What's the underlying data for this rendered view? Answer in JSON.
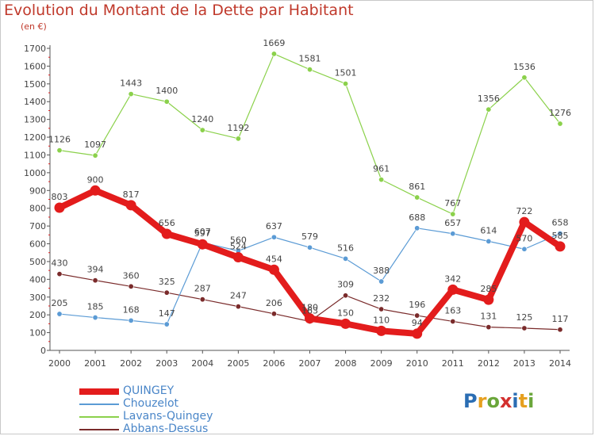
{
  "title": "Evolution du Montant de la Dette par Habitant",
  "unit": "(en €)",
  "logo": {
    "text": "Proxiti",
    "letters": [
      {
        "ch": "P",
        "color": "#2a6db3"
      },
      {
        "ch": "r",
        "color": "#e6a020"
      },
      {
        "ch": "o",
        "color": "#6aa63a"
      },
      {
        "ch": "x",
        "color": "#d3302f"
      },
      {
        "ch": "i",
        "color": "#2a6db3"
      },
      {
        "ch": "t",
        "color": "#e6a020"
      },
      {
        "ch": "i",
        "color": "#6aa63a"
      }
    ]
  },
  "chart_data": {
    "type": "line",
    "title": "Evolution du Montant de la Dette par Habitant",
    "unit": "(en €)",
    "x": [
      2000,
      2001,
      2002,
      2003,
      2004,
      2005,
      2006,
      2007,
      2008,
      2009,
      2010,
      2011,
      2012,
      2013,
      2014
    ],
    "ylim": [
      0,
      1700
    ],
    "yticks": [
      0,
      100,
      200,
      300,
      400,
      500,
      600,
      700,
      800,
      900,
      1000,
      1100,
      1200,
      1300,
      1400,
      1500,
      1600,
      1700
    ],
    "grid": false,
    "legend_position": "bottom-left",
    "series": [
      {
        "name": "QUINGEY",
        "color": "#e31c1c",
        "emphasis": true,
        "values": [
          803,
          900,
          817,
          656,
          597,
          524,
          454,
          180,
          150,
          110,
          94,
          342,
          285,
          722,
          585
        ]
      },
      {
        "name": "Chouzelot",
        "color": "#5b9bd5",
        "emphasis": false,
        "values": [
          205,
          185,
          168,
          147,
          607,
          560,
          637,
          579,
          516,
          388,
          688,
          657,
          614,
          570,
          658
        ]
      },
      {
        "name": "Lavans-Quingey",
        "color": "#8bd14b",
        "emphasis": false,
        "values": [
          1126,
          1097,
          1443,
          1400,
          1240,
          1192,
          1669,
          1581,
          1501,
          961,
          861,
          767,
          1356,
          1536,
          1276
        ]
      },
      {
        "name": "Abbans-Dessus",
        "color": "#7a2b2b",
        "emphasis": false,
        "values": [
          430,
          394,
          360,
          325,
          287,
          247,
          206,
          163,
          309,
          232,
          196,
          163,
          131,
          125,
          117
        ]
      }
    ]
  }
}
